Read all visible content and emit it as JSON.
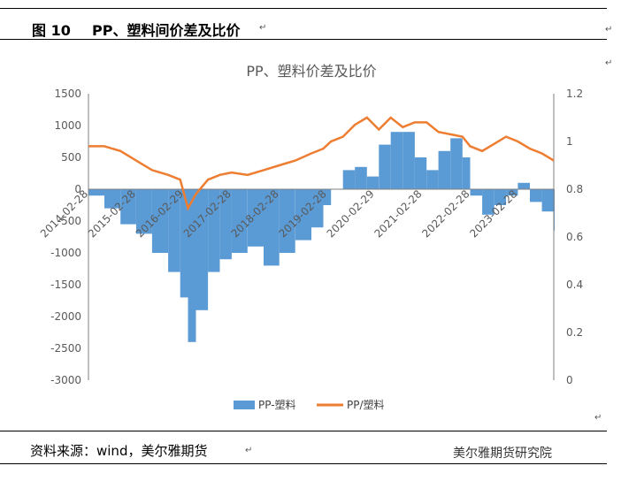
{
  "header": {
    "figure_no": "图 10",
    "title": "PP、塑料间价差及比价",
    "para_mark": "↵"
  },
  "footer": {
    "source": "资料来源：wind，美尔雅期货",
    "para_mark": "↵",
    "watermark": "美尔雅期货研究院"
  },
  "colors": {
    "spread": "#5b9bd5",
    "ratio": "#ed7d31"
  },
  "chart_data": {
    "type": "bar",
    "title": "PP、塑料价差及比价",
    "x_tick_labels": [
      "2014-02-28",
      "2015-02-28",
      "2016-02-29",
      "2017-02-28",
      "2018-02-28",
      "2019-02-28",
      "2020-02-29",
      "2021-02-28",
      "2022-02-28",
      "2023-02-28"
    ],
    "x_range": [
      "2014-02-28",
      "2023-11-30"
    ],
    "y_left": {
      "lim": [
        -3000,
        1500
      ],
      "ticks": [
        1500,
        1000,
        500,
        0,
        -500,
        -1000,
        -1500,
        -2000,
        -2500,
        -3000
      ]
    },
    "y_right": {
      "lim": [
        0,
        1.2
      ],
      "ticks": [
        1.2,
        1,
        0.8,
        0.6,
        0.4,
        0.2,
        0
      ]
    },
    "series": [
      {
        "name": "PP-塑料",
        "axis": "left",
        "kind": "bar",
        "x": [
          "2014-02-28",
          "2014-06-30",
          "2014-10-31",
          "2015-02-28",
          "2015-06-30",
          "2015-10-31",
          "2016-01-31",
          "2016-03-31",
          "2016-05-31",
          "2016-08-31",
          "2016-11-30",
          "2017-02-28",
          "2017-06-30",
          "2017-10-31",
          "2018-02-28",
          "2018-06-30",
          "2018-10-31",
          "2019-01-31",
          "2019-03-31",
          "2019-06-30",
          "2019-09-30",
          "2019-12-31",
          "2020-03-31",
          "2020-06-30",
          "2020-09-30",
          "2020-12-31",
          "2021-03-31",
          "2021-06-30",
          "2021-09-30",
          "2021-12-31",
          "2022-02-28",
          "2022-05-31",
          "2022-08-31",
          "2022-11-30",
          "2023-02-28",
          "2023-05-31",
          "2023-08-31",
          "2023-11-30"
        ],
        "values": [
          -100,
          -300,
          -550,
          -700,
          -1000,
          -1300,
          -1700,
          -2400,
          -1900,
          -1300,
          -1100,
          -1000,
          -900,
          -1200,
          -1000,
          -800,
          -600,
          -250,
          0,
          300,
          350,
          200,
          700,
          900,
          900,
          500,
          300,
          600,
          800,
          500,
          -100,
          -400,
          -250,
          -100,
          100,
          -200,
          -350,
          -650
        ]
      },
      {
        "name": "PP/塑料",
        "axis": "right",
        "kind": "line",
        "x": [
          "2014-02-28",
          "2014-06-30",
          "2014-10-31",
          "2015-02-28",
          "2015-06-30",
          "2015-10-31",
          "2016-01-31",
          "2016-03-31",
          "2016-05-31",
          "2016-08-31",
          "2016-11-30",
          "2017-02-28",
          "2017-06-30",
          "2017-10-31",
          "2018-02-28",
          "2018-06-30",
          "2018-10-31",
          "2019-01-31",
          "2019-03-31",
          "2019-06-30",
          "2019-09-30",
          "2019-12-31",
          "2020-03-31",
          "2020-06-30",
          "2020-09-30",
          "2020-12-31",
          "2021-03-31",
          "2021-06-30",
          "2021-09-30",
          "2021-12-31",
          "2022-02-28",
          "2022-05-31",
          "2022-08-31",
          "2022-11-30",
          "2023-02-28",
          "2023-05-31",
          "2023-08-31",
          "2023-11-30"
        ],
        "values": [
          0.98,
          0.98,
          0.96,
          0.92,
          0.88,
          0.86,
          0.84,
          0.72,
          0.78,
          0.84,
          0.86,
          0.87,
          0.86,
          0.88,
          0.9,
          0.92,
          0.95,
          0.97,
          1.0,
          1.02,
          1.07,
          1.1,
          1.05,
          1.1,
          1.06,
          1.08,
          1.08,
          1.04,
          1.03,
          1.02,
          0.98,
          0.96,
          0.99,
          1.02,
          1.0,
          0.97,
          0.95,
          0.92
        ]
      }
    ],
    "legend": {
      "position": "bottom",
      "entries": [
        "PP-塑料",
        "PP/塑料"
      ]
    }
  }
}
